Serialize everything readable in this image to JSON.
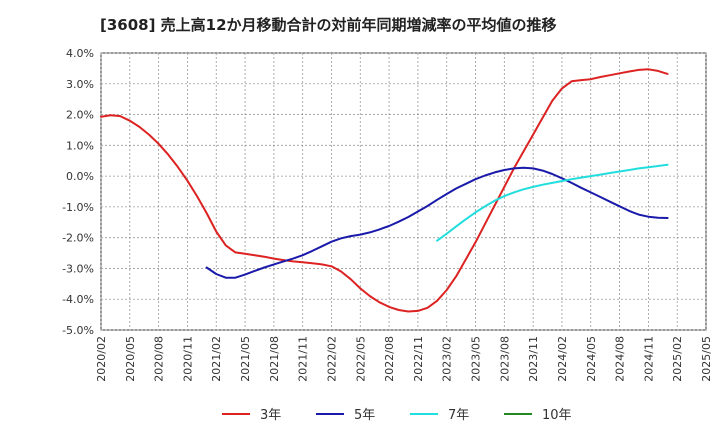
{
  "chart_data": {
    "type": "line",
    "title": "[3608]  売上高12か月移動合計の対前年同期増減率の平均値の推移",
    "xlabel": "",
    "ylabel": "",
    "x_ticks": [
      "2020/02",
      "2020/05",
      "2020/08",
      "2020/11",
      "2021/02",
      "2021/05",
      "2021/08",
      "2021/11",
      "2022/02",
      "2022/05",
      "2022/08",
      "2022/11",
      "2023/02",
      "2023/05",
      "2023/08",
      "2023/11",
      "2024/02",
      "2024/05",
      "2024/08",
      "2024/11",
      "2025/02",
      "2025/05"
    ],
    "y_ticks": [
      "4.0%",
      "3.0%",
      "2.0%",
      "1.0%",
      "0.0%",
      "-1.0%",
      "-2.0%",
      "-3.0%",
      "-4.0%",
      "-5.0%"
    ],
    "ylim": [
      -5,
      4
    ],
    "xlim": [
      "2020/02",
      "2025/05"
    ],
    "grid": true,
    "legend_position": "bottom",
    "series": [
      {
        "name": "3年",
        "color": "#dd2222",
        "points": [
          [
            "2020/02",
            1.93
          ],
          [
            "2020/03",
            1.98
          ],
          [
            "2020/04",
            1.95
          ],
          [
            "2020/05",
            1.8
          ],
          [
            "2020/06",
            1.6
          ],
          [
            "2020/07",
            1.35
          ],
          [
            "2020/08",
            1.05
          ],
          [
            "2020/09",
            0.7
          ],
          [
            "2020/10",
            0.3
          ],
          [
            "2020/11",
            -0.15
          ],
          [
            "2020/12",
            -0.65
          ],
          [
            "2021/01",
            -1.2
          ],
          [
            "2021/02",
            -1.8
          ],
          [
            "2021/03",
            -2.25
          ],
          [
            "2021/04",
            -2.48
          ],
          [
            "2021/05",
            -2.52
          ],
          [
            "2021/06",
            -2.57
          ],
          [
            "2021/07",
            -2.62
          ],
          [
            "2021/08",
            -2.68
          ],
          [
            "2021/09",
            -2.73
          ],
          [
            "2021/10",
            -2.77
          ],
          [
            "2021/11",
            -2.8
          ],
          [
            "2021/12",
            -2.83
          ],
          [
            "2022/01",
            -2.87
          ],
          [
            "2022/02",
            -2.93
          ],
          [
            "2022/03",
            -3.1
          ],
          [
            "2022/04",
            -3.35
          ],
          [
            "2022/05",
            -3.65
          ],
          [
            "2022/06",
            -3.9
          ],
          [
            "2022/07",
            -4.1
          ],
          [
            "2022/08",
            -4.25
          ],
          [
            "2022/09",
            -4.35
          ],
          [
            "2022/10",
            -4.4
          ],
          [
            "2022/11",
            -4.38
          ],
          [
            "2022/12",
            -4.28
          ],
          [
            "2023/01",
            -4.05
          ],
          [
            "2023/02",
            -3.7
          ],
          [
            "2023/03",
            -3.25
          ],
          [
            "2023/04",
            -2.7
          ],
          [
            "2023/05",
            -2.15
          ],
          [
            "2023/06",
            -1.55
          ],
          [
            "2023/07",
            -0.95
          ],
          [
            "2023/08",
            -0.35
          ],
          [
            "2023/09",
            0.25
          ],
          [
            "2023/10",
            0.8
          ],
          [
            "2023/11",
            1.35
          ],
          [
            "2023/12",
            1.9
          ],
          [
            "2024/01",
            2.45
          ],
          [
            "2024/02",
            2.85
          ],
          [
            "2024/03",
            3.08
          ],
          [
            "2024/04",
            3.12
          ],
          [
            "2024/05",
            3.15
          ],
          [
            "2024/06",
            3.22
          ],
          [
            "2024/07",
            3.28
          ],
          [
            "2024/08",
            3.34
          ],
          [
            "2024/09",
            3.4
          ],
          [
            "2024/10",
            3.45
          ],
          [
            "2024/11",
            3.47
          ],
          [
            "2024/12",
            3.42
          ],
          [
            "2025/01",
            3.32
          ]
        ]
      },
      {
        "name": "5年",
        "color": "#1a1aaa",
        "points": [
          [
            "2021/01",
            -2.97
          ],
          [
            "2021/02",
            -3.18
          ],
          [
            "2021/03",
            -3.3
          ],
          [
            "2021/04",
            -3.3
          ],
          [
            "2021/05",
            -3.2
          ],
          [
            "2021/06",
            -3.08
          ],
          [
            "2021/07",
            -2.97
          ],
          [
            "2021/08",
            -2.87
          ],
          [
            "2021/09",
            -2.77
          ],
          [
            "2021/10",
            -2.68
          ],
          [
            "2021/11",
            -2.57
          ],
          [
            "2021/12",
            -2.43
          ],
          [
            "2022/01",
            -2.28
          ],
          [
            "2022/02",
            -2.13
          ],
          [
            "2022/03",
            -2.02
          ],
          [
            "2022/04",
            -1.95
          ],
          [
            "2022/05",
            -1.9
          ],
          [
            "2022/06",
            -1.83
          ],
          [
            "2022/07",
            -1.73
          ],
          [
            "2022/08",
            -1.62
          ],
          [
            "2022/09",
            -1.48
          ],
          [
            "2022/10",
            -1.33
          ],
          [
            "2022/11",
            -1.15
          ],
          [
            "2022/12",
            -0.97
          ],
          [
            "2023/01",
            -0.77
          ],
          [
            "2023/02",
            -0.58
          ],
          [
            "2023/03",
            -0.4
          ],
          [
            "2023/04",
            -0.25
          ],
          [
            "2023/05",
            -0.1
          ],
          [
            "2023/06",
            0.02
          ],
          [
            "2023/07",
            0.12
          ],
          [
            "2023/08",
            0.2
          ],
          [
            "2023/09",
            0.25
          ],
          [
            "2023/10",
            0.27
          ],
          [
            "2023/11",
            0.25
          ],
          [
            "2023/12",
            0.18
          ],
          [
            "2024/01",
            0.07
          ],
          [
            "2024/02",
            -0.07
          ],
          [
            "2024/03",
            -0.22
          ],
          [
            "2024/04",
            -0.38
          ],
          [
            "2024/05",
            -0.53
          ],
          [
            "2024/06",
            -0.68
          ],
          [
            "2024/07",
            -0.83
          ],
          [
            "2024/08",
            -0.98
          ],
          [
            "2024/09",
            -1.13
          ],
          [
            "2024/10",
            -1.25
          ],
          [
            "2024/11",
            -1.32
          ],
          [
            "2024/12",
            -1.35
          ],
          [
            "2025/01",
            -1.36
          ]
        ]
      },
      {
        "name": "7年",
        "color": "#22dddd",
        "points": [
          [
            "2023/01",
            -2.1
          ],
          [
            "2023/02",
            -1.87
          ],
          [
            "2023/03",
            -1.63
          ],
          [
            "2023/04",
            -1.4
          ],
          [
            "2023/05",
            -1.18
          ],
          [
            "2023/06",
            -0.98
          ],
          [
            "2023/07",
            -0.8
          ],
          [
            "2023/08",
            -0.65
          ],
          [
            "2023/09",
            -0.53
          ],
          [
            "2023/10",
            -0.43
          ],
          [
            "2023/11",
            -0.35
          ],
          [
            "2023/12",
            -0.28
          ],
          [
            "2024/01",
            -0.22
          ],
          [
            "2024/02",
            -0.16
          ],
          [
            "2024/03",
            -0.1
          ],
          [
            "2024/04",
            -0.05
          ],
          [
            "2024/05",
            0.0
          ],
          [
            "2024/06",
            0.05
          ],
          [
            "2024/07",
            0.1
          ],
          [
            "2024/08",
            0.15
          ],
          [
            "2024/09",
            0.2
          ],
          [
            "2024/10",
            0.25
          ],
          [
            "2024/11",
            0.29
          ],
          [
            "2024/12",
            0.33
          ],
          [
            "2025/01",
            0.37
          ]
        ]
      },
      {
        "name": "10年",
        "color": "#228822",
        "points": []
      }
    ]
  }
}
